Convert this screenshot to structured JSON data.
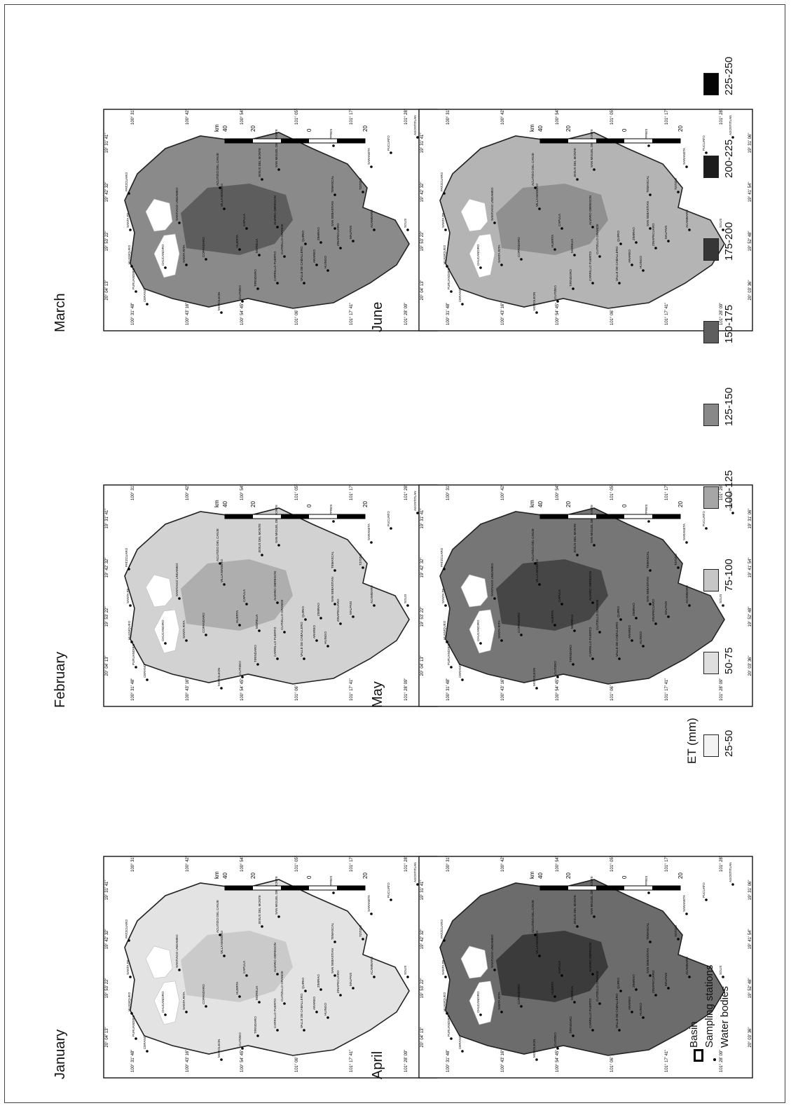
{
  "legend": {
    "title": "ET (mm)",
    "classes": [
      {
        "label": "25-50",
        "color": "#f3f3f3"
      },
      {
        "label": "50-75",
        "color": "#dedede"
      },
      {
        "label": "75-100",
        "color": "#c6c6c6"
      },
      {
        "label": "100-125",
        "color": "#a6a6a6"
      },
      {
        "label": "125-150",
        "color": "#888888"
      },
      {
        "label": "150-175",
        "color": "#5e5e5e"
      },
      {
        "label": "175-200",
        "color": "#363636"
      },
      {
        "label": "200-225",
        "color": "#1c1c1c"
      },
      {
        "label": "225-250",
        "color": "#050505"
      }
    ],
    "basin": "Basin",
    "stations": "Sampling stations",
    "water": "Water bodies"
  },
  "maps": [
    {
      "month": "January",
      "fill": "#e3e3e3",
      "dark": "#c6c6c6"
    },
    {
      "month": "February",
      "fill": "#d2d2d2",
      "dark": "#a8a8a8"
    },
    {
      "month": "March",
      "fill": "#8a8a8a",
      "dark": "#555555"
    },
    {
      "month": "April",
      "fill": "#6c6c6c",
      "dark": "#333333"
    },
    {
      "month": "May",
      "fill": "#767676",
      "dark": "#3e3e3e"
    },
    {
      "month": "June",
      "fill": "#b4b4b4",
      "dark": "#8a8a8a"
    }
  ],
  "scalebar": {
    "ticks": [
      "20",
      "0",
      "20",
      "40"
    ],
    "unit": "km"
  },
  "lat_ticks": [
    "20° 03' 36\"",
    "19° 52' 48\"",
    "19° 41' 54\"",
    "19° 31' 06\""
  ],
  "lon_top": [
    "101° 28' 09\"",
    "101° 17' 41\"",
    "101° 06' 12\"",
    "100° 54' 45\"",
    "100° 43' 16\"",
    "100° 31' 48\""
  ],
  "lon_bottom": [
    "101° 28' 39\"",
    "101° 17' 13\"",
    "101° 05' 43\"",
    "100° 54' 21\"",
    "100° 42' 55\"",
    "100° 31' 29\""
  ],
  "lat_right": [
    "20° 04' 13\"",
    "19° 53' 22\"",
    "19° 42' 32\"",
    "19° 31' 41\""
  ],
  "towns": [
    {
      "name": "CERANO"
    },
    {
      "name": "PURUANDIRO"
    },
    {
      "name": "HUANIQUEO"
    },
    {
      "name": "SANTA FE"
    },
    {
      "name": "PATZCUARO"
    },
    {
      "name": "MOROLEON"
    },
    {
      "name": "CUITZEO"
    },
    {
      "name": "CHUCANDIRO"
    },
    {
      "name": "SANTA RITA"
    },
    {
      "name": "COPANDARO"
    },
    {
      "name": "HUERTA"
    },
    {
      "name": "MORELIA"
    },
    {
      "name": "CAPULA"
    },
    {
      "name": "SANTIAGO UNDAMEO"
    },
    {
      "name": "VILLA MADERO"
    },
    {
      "name": "ACUITZIO DEL CANJE"
    },
    {
      "name": "TIRINDARO"
    },
    {
      "name": "CARRILLO PUERTO"
    },
    {
      "name": "CUITZILLO GRANDE"
    },
    {
      "name": "ALVARO OBREGON"
    },
    {
      "name": "JESUS DEL MONTE"
    },
    {
      "name": "SAN MIGUEL DEL MONTE"
    },
    {
      "name": "QUIRIO"
    },
    {
      "name": "ZINAPECUARO"
    },
    {
      "name": "SAN SEBASTIAN"
    },
    {
      "name": "MALPAIS"
    },
    {
      "name": "TEMASCAL"
    },
    {
      "name": "TZITZIO"
    },
    {
      "name": "ARAREO"
    },
    {
      "name": "ACAMBARO"
    },
    {
      "name": "SOLIS"
    },
    {
      "name": "TUPPRES"
    },
    {
      "name": "SARANETA"
    },
    {
      "name": "PUCUATO"
    },
    {
      "name": "AGOSTITLAN"
    },
    {
      "name": "HUINGO"
    },
    {
      "name": "ZIMIRAO"
    },
    {
      "name": "VALLE DE CABALLERO"
    }
  ]
}
